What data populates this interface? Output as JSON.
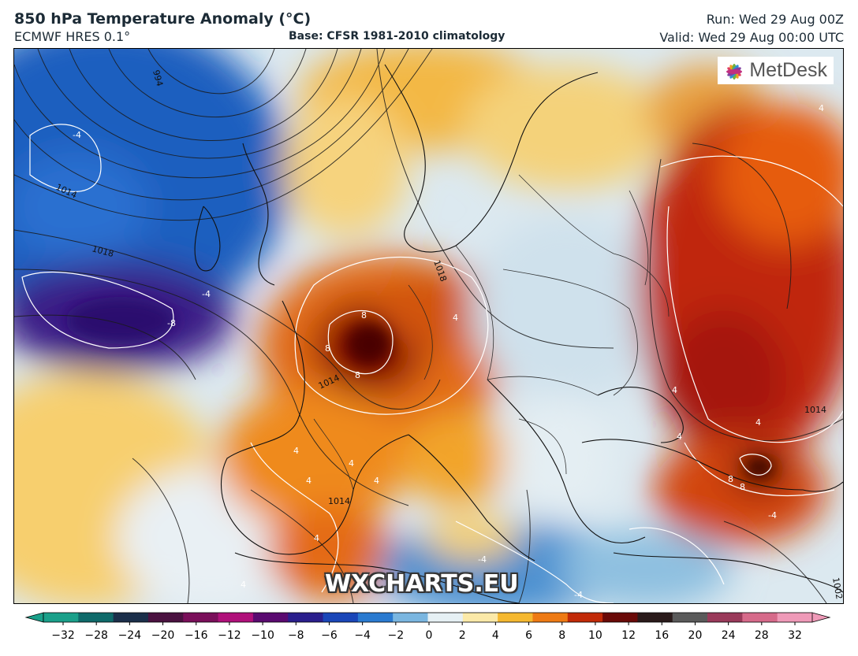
{
  "header": {
    "title": "850 hPa Temperature Anomaly (°C)",
    "model": "ECMWF HRES 0.1°",
    "base": "Base: CFSR 1981-2010 climatology",
    "run": "Run: Wed 29 Aug 00Z",
    "valid": "Valid: Wed 29 Aug 00:00 UTC"
  },
  "logo": {
    "text": "MetDesk",
    "icon": "metdesk-flower-icon"
  },
  "watermark": "WXCHARTS.EU",
  "colorbar": {
    "ticks": [
      "−32",
      "−28",
      "−24",
      "−20",
      "−16",
      "−12",
      "−10",
      "−8",
      "−6",
      "−4",
      "−2",
      "0",
      "2",
      "4",
      "6",
      "8",
      "10",
      "12",
      "16",
      "20",
      "24",
      "28",
      "32"
    ],
    "colors": [
      "#1aa08a",
      "#0f6a6a",
      "#1b2f4a",
      "#4a1240",
      "#7a0f5a",
      "#b0107a",
      "#5a0a70",
      "#2a1e8c",
      "#1a46b8",
      "#2a7ad0",
      "#7ab6e0",
      "#e6f0f4",
      "#fbe9a8",
      "#f5b830",
      "#ee7a14",
      "#c22a08",
      "#6a0a08",
      "#2a1a1a",
      "#5a5a5a",
      "#9a3a5a",
      "#d66a8a",
      "#ef9ab8"
    ]
  },
  "map": {
    "isobar_labels": [
      "994",
      "1014",
      "1018",
      "1018",
      "1014",
      "1014",
      "1014",
      "1002"
    ],
    "anomaly_labels": [
      "-4",
      "-4",
      "-8",
      "4",
      "8",
      "8",
      "8",
      "4",
      "4",
      "4",
      "4",
      "4",
      "4",
      "4",
      "8",
      "8",
      "4",
      "-4",
      "-4",
      "-4",
      "4",
      "4"
    ]
  }
}
